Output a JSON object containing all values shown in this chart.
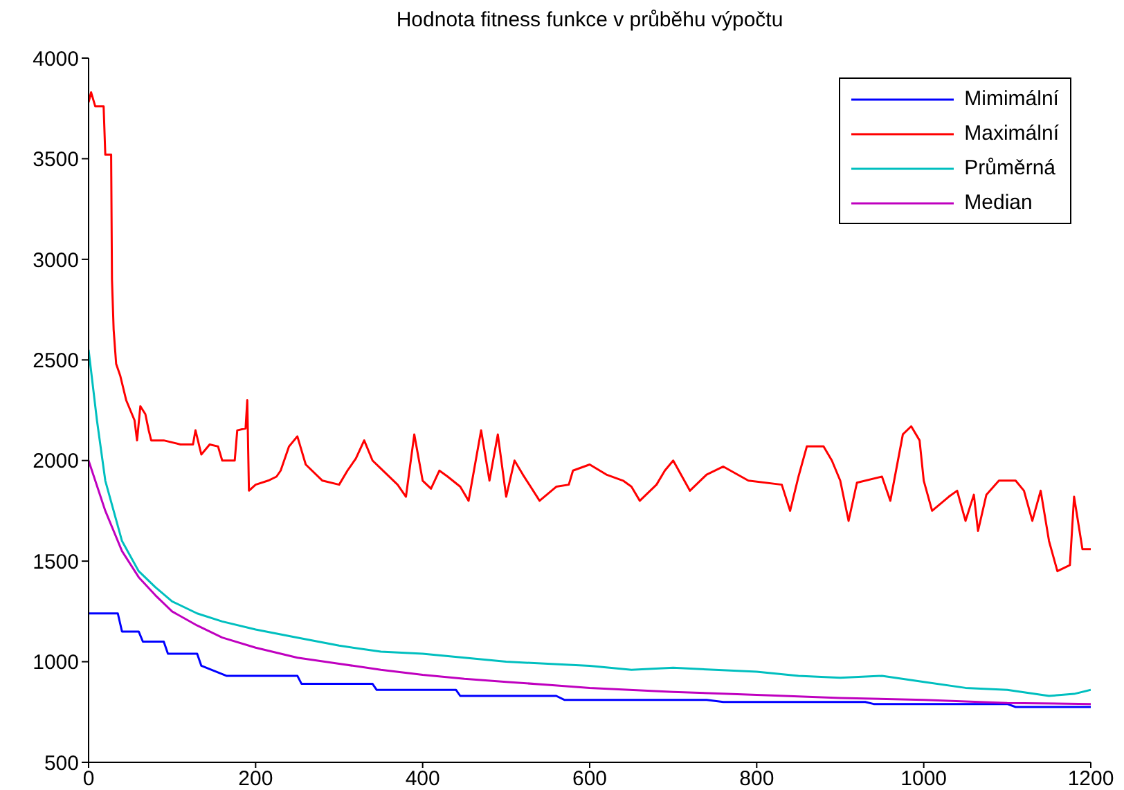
{
  "chart_data": {
    "type": "line",
    "title": "Hodnota fitness funkce v průběhu výpočtu",
    "xlim": [
      0,
      1200
    ],
    "xticks": [
      0,
      200,
      400,
      600,
      800,
      1000,
      1200
    ],
    "ylim": [
      500,
      4000
    ],
    "yticks": [
      500,
      1000,
      1500,
      2000,
      2500,
      3000,
      3500,
      4000
    ],
    "legend": "top right",
    "marker": "none",
    "line_style": "solid",
    "series": [
      {
        "name": "Mimimální",
        "color": "#0000ff",
        "x": [
          0,
          35,
          40,
          60,
          65,
          90,
          95,
          130,
          135,
          165,
          250,
          255,
          340,
          345,
          440,
          445,
          560,
          570,
          740,
          760,
          930,
          940,
          1100,
          1110,
          1200
        ],
        "values": [
          1240,
          1240,
          1150,
          1150,
          1100,
          1100,
          1040,
          1040,
          980,
          930,
          930,
          890,
          890,
          860,
          860,
          830,
          830,
          810,
          810,
          800,
          800,
          790,
          790,
          775,
          775
        ]
      },
      {
        "name": "Maximální",
        "color": "#ff0000",
        "x": [
          0,
          3,
          8,
          18,
          20,
          27,
          28,
          30,
          33,
          38,
          45,
          55,
          58,
          62,
          68,
          72,
          75,
          90,
          110,
          125,
          128,
          135,
          145,
          155,
          160,
          175,
          178,
          188,
          190,
          192,
          200,
          215,
          225,
          230,
          240,
          250,
          260,
          280,
          300,
          310,
          320,
          330,
          340,
          350,
          370,
          380,
          390,
          400,
          410,
          420,
          430,
          445,
          455,
          470,
          480,
          490,
          500,
          510,
          520,
          540,
          560,
          575,
          580,
          600,
          620,
          640,
          650,
          660,
          680,
          690,
          700,
          720,
          740,
          760,
          790,
          830,
          840,
          850,
          860,
          880,
          890,
          900,
          910,
          920,
          950,
          960,
          975,
          985,
          995,
          1000,
          1010,
          1030,
          1040,
          1050,
          1060,
          1065,
          1075,
          1090,
          1110,
          1120,
          1130,
          1140,
          1150,
          1160,
          1175,
          1180,
          1190,
          1200
        ],
        "values": [
          3780,
          3830,
          3760,
          3760,
          3520,
          3520,
          2900,
          2650,
          2480,
          2420,
          2300,
          2200,
          2100,
          2270,
          2230,
          2150,
          2100,
          2100,
          2080,
          2080,
          2150,
          2030,
          2080,
          2070,
          2000,
          2000,
          2150,
          2160,
          2300,
          1850,
          1880,
          1900,
          1920,
          1950,
          2070,
          2120,
          1980,
          1900,
          1880,
          1950,
          2010,
          2100,
          2000,
          1960,
          1880,
          1820,
          2130,
          1900,
          1860,
          1950,
          1920,
          1870,
          1800,
          2150,
          1900,
          2130,
          1820,
          2000,
          1930,
          1800,
          1870,
          1880,
          1950,
          1980,
          1930,
          1900,
          1870,
          1800,
          1880,
          1950,
          2000,
          1850,
          1930,
          1970,
          1900,
          1880,
          1750,
          1920,
          2070,
          2070,
          2000,
          1900,
          1700,
          1890,
          1920,
          1800,
          2130,
          2170,
          2100,
          1900,
          1750,
          1820,
          1850,
          1700,
          1830,
          1650,
          1830,
          1900,
          1900,
          1850,
          1700,
          1850,
          1600,
          1450,
          1480,
          1820,
          1560,
          1560
        ]
      },
      {
        "name": "Průměrná",
        "color": "#00bfbf",
        "x": [
          0,
          10,
          20,
          40,
          60,
          80,
          100,
          130,
          160,
          200,
          250,
          300,
          350,
          400,
          450,
          500,
          550,
          600,
          650,
          700,
          750,
          800,
          850,
          900,
          950,
          1000,
          1050,
          1100,
          1150,
          1180,
          1200
        ],
        "values": [
          2550,
          2200,
          1900,
          1600,
          1450,
          1370,
          1300,
          1240,
          1200,
          1160,
          1120,
          1080,
          1050,
          1040,
          1020,
          1000,
          990,
          980,
          960,
          970,
          960,
          950,
          930,
          920,
          930,
          900,
          870,
          860,
          830,
          840,
          860
        ]
      },
      {
        "name": "Median",
        "color": "#bf00bf",
        "x": [
          0,
          20,
          40,
          60,
          80,
          100,
          130,
          160,
          200,
          250,
          300,
          350,
          400,
          450,
          500,
          550,
          600,
          700,
          800,
          900,
          1000,
          1100,
          1200
        ],
        "values": [
          2000,
          1750,
          1550,
          1420,
          1330,
          1250,
          1180,
          1120,
          1070,
          1020,
          990,
          960,
          935,
          915,
          900,
          885,
          870,
          850,
          835,
          820,
          810,
          795,
          790
        ]
      }
    ]
  }
}
